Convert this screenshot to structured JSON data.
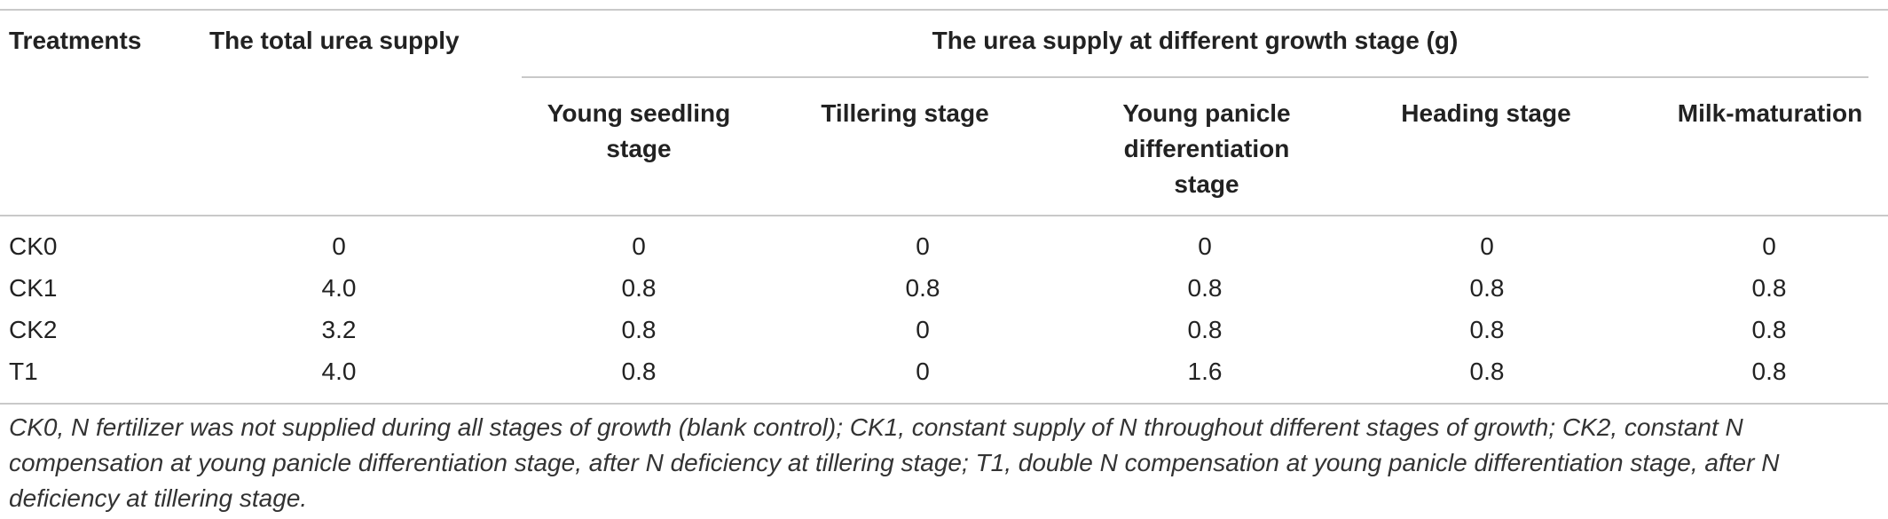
{
  "table": {
    "headers": {
      "treatments": "Treatments",
      "total": "The total urea supply",
      "group": "The urea supply at different growth stage (g)",
      "stages": [
        "Young seedling stage",
        "Tillering stage",
        "Young panicle differentiation stage",
        "Heading stage",
        "Milk-maturation"
      ]
    },
    "rows": [
      {
        "treatment": "CK0",
        "total": "0",
        "stages": [
          "0",
          "0",
          "0",
          "0",
          "0"
        ]
      },
      {
        "treatment": "CK1",
        "total": "4.0",
        "stages": [
          "0.8",
          "0.8",
          "0.8",
          "0.8",
          "0.8"
        ]
      },
      {
        "treatment": "CK2",
        "total": "3.2",
        "stages": [
          "0.8",
          "0",
          "0.8",
          "0.8",
          "0.8"
        ]
      },
      {
        "treatment": "T1",
        "total": "4.0",
        "stages": [
          "0.8",
          "0",
          "1.6",
          "0.8",
          "0.8"
        ]
      }
    ],
    "footnote": "CK0, N fertilizer was not supplied during all stages of growth (blank control); CK1, constant supply of N throughout different stages of growth; CK2, constant N compensation at young panicle differentiation stage, after N deficiency at tillering stage; T1, double N compensation at young panicle differentiation stage, after N deficiency at tillering stage."
  }
}
